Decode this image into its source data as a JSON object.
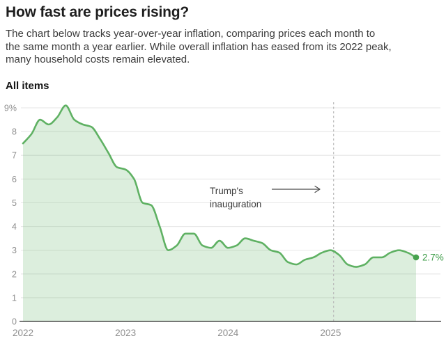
{
  "header": {
    "title": "How fast are prices rising?",
    "description_lines": [
      "The chart below tracks year-over-year inflation, comparing prices each month to",
      "the same month a year earlier. While overall inflation has eased from its 2022 peak,",
      "many household costs remain elevated."
    ],
    "series_label": "All items"
  },
  "chart_data": {
    "type": "area",
    "title": "All items",
    "ylabel": "",
    "xlabel": "",
    "unit": "%",
    "ylim": [
      0,
      9
    ],
    "grid": true,
    "x": [
      "Jan 2022",
      "Feb 2022",
      "Mar 2022",
      "Apr 2022",
      "May 2022",
      "Jun 2022",
      "Jul 2022",
      "Aug 2022",
      "Sep 2022",
      "Oct 2022",
      "Nov 2022",
      "Dec 2022",
      "Jan 2023",
      "Feb 2023",
      "Mar 2023",
      "Apr 2023",
      "May 2023",
      "Jun 2023",
      "Jul 2023",
      "Aug 2023",
      "Sep 2023",
      "Oct 2023",
      "Nov 2023",
      "Dec 2023",
      "Jan 2024",
      "Feb 2024",
      "Mar 2024",
      "Apr 2024",
      "May 2024",
      "Jun 2024",
      "Jul 2024",
      "Aug 2024",
      "Sep 2024",
      "Oct 2024",
      "Nov 2024",
      "Dec 2024",
      "Jan 2025",
      "Feb 2025",
      "Mar 2025",
      "Apr 2025",
      "May 2025",
      "Jun 2025",
      "Jul 2025",
      "Aug 2025",
      "Sep 2025",
      "Oct 2025",
      "Nov 2025"
    ],
    "values": [
      7.5,
      7.9,
      8.5,
      8.3,
      8.6,
      9.1,
      8.5,
      8.3,
      8.2,
      7.7,
      7.1,
      6.5,
      6.4,
      6.0,
      5.0,
      4.9,
      4.0,
      3.0,
      3.2,
      3.7,
      3.7,
      3.2,
      3.1,
      3.4,
      3.1,
      3.2,
      3.5,
      3.4,
      3.3,
      3.0,
      2.9,
      2.5,
      2.4,
      2.6,
      2.7,
      2.9,
      3.0,
      2.8,
      2.4,
      2.3,
      2.4,
      2.7,
      2.7,
      2.9,
      3.0,
      2.9,
      2.7
    ],
    "ytick_labels": [
      "0",
      "1",
      "2",
      "3",
      "4",
      "5",
      "6",
      "7",
      "8",
      "9%"
    ],
    "xticks": [
      {
        "label": "2022",
        "month_index": 0
      },
      {
        "label": "2023",
        "month_index": 12
      },
      {
        "label": "2024",
        "month_index": 24
      },
      {
        "label": "2025",
        "month_index": 36
      }
    ],
    "annotation": {
      "lines": [
        "Trump's",
        "inauguration"
      ]
    },
    "end_label": "2.7%",
    "colors": {
      "line": "#5fb163",
      "fill": "rgba(95,177,99,0.22)",
      "dot": "#47a24e",
      "end_label": "#3f9d49",
      "grid": "#e9e9e9",
      "axis": "#4d4d4d",
      "dash": "#bcbcbc",
      "tick_text": "#8e8e8e",
      "annotation_text": "#3d3d3d",
      "arrow": "#4a4a4a"
    }
  }
}
